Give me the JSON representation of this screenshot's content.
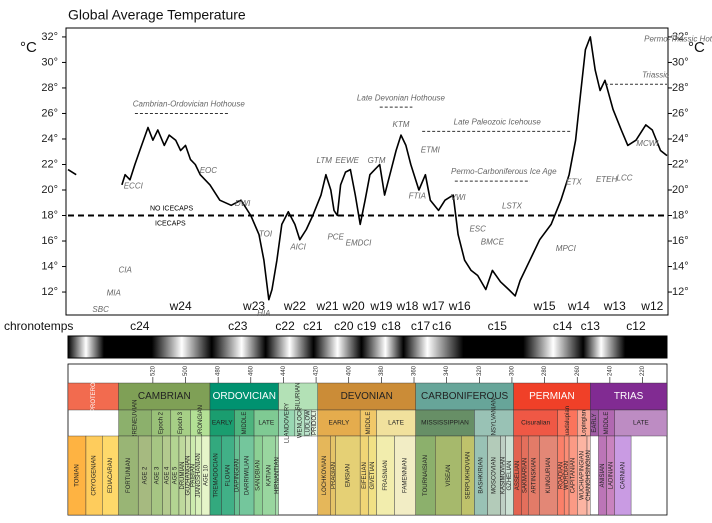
{
  "chart_data": {
    "type": "line",
    "title": "Global Average Temperature",
    "y_unit": "°C",
    "x": [
      572,
      567,
      555,
      539,
      537,
      534,
      531,
      528,
      523,
      520,
      517,
      513,
      510,
      506,
      503,
      500,
      497,
      494,
      491,
      485,
      479,
      472,
      466,
      460,
      455,
      452,
      449,
      447,
      444,
      441,
      437,
      433,
      430,
      426,
      422,
      417,
      414,
      411,
      409,
      407,
      405,
      402,
      399,
      396,
      393,
      390,
      387,
      384,
      381,
      378,
      374,
      371,
      368,
      365,
      362,
      357,
      353,
      350,
      345,
      341,
      336,
      333,
      329,
      325,
      321,
      316,
      312,
      307,
      302,
      298,
      295,
      289,
      283,
      276,
      270,
      265,
      261,
      258,
      255,
      252,
      249,
      246,
      243,
      238,
      233,
      229,
      224,
      218,
      214,
      209,
      205
    ],
    "values": [
      21.6,
      21.2,
      null,
      20.4,
      21.2,
      20.8,
      22.0,
      23.1,
      24.9,
      23.9,
      24.7,
      23.5,
      24.3,
      23.9,
      23.1,
      23.5,
      22.4,
      22.0,
      21.2,
      20.4,
      19.2,
      18.8,
      19.2,
      18.0,
      16.5,
      14.5,
      11.4,
      12.2,
      14.5,
      17.3,
      18.3,
      17.3,
      16.1,
      16.9,
      18.0,
      19.6,
      21.2,
      20.0,
      18.4,
      18.0,
      20.4,
      21.4,
      21.6,
      19.6,
      17.3,
      19.2,
      21.2,
      21.6,
      22.0,
      19.6,
      21.6,
      23.1,
      24.3,
      23.5,
      22.0,
      20.0,
      21.2,
      19.2,
      18.4,
      19.2,
      19.6,
      16.5,
      14.5,
      13.7,
      13.3,
      12.2,
      13.7,
      12.8,
      12.2,
      11.7,
      12.9,
      14.5,
      16.1,
      17.3,
      19.2,
      21.2,
      23.9,
      27.5,
      31.0,
      32.0,
      29.4,
      27.8,
      28.6,
      26.3,
      24.7,
      23.5,
      23.9,
      25.1,
      24.7,
      23.1,
      22.7
    ],
    "color": "#000000",
    "xlim": [
      572,
      205
    ],
    "ylim": [
      10.2,
      32.7
    ],
    "yticks": [
      {
        "value": 12,
        "label": "12°"
      },
      {
        "value": 14,
        "label": "14°"
      },
      {
        "value": 16,
        "label": "16°"
      },
      {
        "value": 18,
        "label": "18°"
      },
      {
        "value": 20,
        "label": "20°"
      },
      {
        "value": 22,
        "label": "22°"
      },
      {
        "value": 24,
        "label": "24°"
      },
      {
        "value": 26,
        "label": "26°"
      },
      {
        "value": 28,
        "label": "28°"
      },
      {
        "value": 30,
        "label": "30°"
      },
      {
        "value": 32,
        "label": "32°"
      }
    ],
    "threshold": {
      "value": 18,
      "above": "NO ICECAPS",
      "below": "ICECAPS"
    },
    "annotations": [
      {
        "text": "Cambrian-Ordovician Hothouse",
        "x": 498,
        "y": 26.7,
        "span": [
          531,
          474
        ]
      },
      {
        "text": "Late Devonian Hothouse",
        "x": 368,
        "y": 27.2,
        "span": [
          381,
          361
        ]
      },
      {
        "text": "Late Paleozoic Icehouse",
        "x": 309,
        "y": 25.3,
        "span": [
          355,
          264
        ]
      },
      {
        "text": "Permo-Carboniferous Ice Age",
        "x": 305,
        "y": 21.4,
        "span": [
          335,
          289
        ]
      },
      {
        "text": "Permo-Triassic Hothouse",
        "x": 219,
        "y": 31.8
      },
      {
        "text": "Triassic",
        "x": 212,
        "y": 29.0,
        "span": [
          243,
          205
        ]
      },
      {
        "text": "ECCI",
        "x": 532,
        "y": 20.3
      },
      {
        "text": "EOC",
        "x": 486,
        "y": 21.5
      },
      {
        "text": "DWI",
        "x": 465,
        "y": 18.9
      },
      {
        "text": "TOI",
        "x": 451,
        "y": 16.5
      },
      {
        "text": "AICI",
        "x": 431,
        "y": 15.5
      },
      {
        "text": "HIA",
        "x": 452,
        "y": 10.3
      },
      {
        "text": "LTM",
        "x": 415,
        "y": 22.3
      },
      {
        "text": "EEWE",
        "x": 401,
        "y": 22.3
      },
      {
        "text": "GTM",
        "x": 383,
        "y": 22.3
      },
      {
        "text": "KTM",
        "x": 368,
        "y": 25.1
      },
      {
        "text": "ETMI",
        "x": 350,
        "y": 23.1
      },
      {
        "text": "FTIA",
        "x": 358,
        "y": 19.5
      },
      {
        "text": "VWI",
        "x": 333,
        "y": 19.4
      },
      {
        "text": "PCE",
        "x": 408,
        "y": 16.3
      },
      {
        "text": "EMDCI",
        "x": 394,
        "y": 15.8
      },
      {
        "text": "ESC",
        "x": 321,
        "y": 16.9
      },
      {
        "text": "BMCE",
        "x": 312,
        "y": 15.9
      },
      {
        "text": "LSTX",
        "x": 300,
        "y": 18.7
      },
      {
        "text": "ETX",
        "x": 262,
        "y": 20.6
      },
      {
        "text": "ETEH",
        "x": 242,
        "y": 20.8
      },
      {
        "text": "MPCI",
        "x": 267,
        "y": 15.4
      },
      {
        "text": "LCC",
        "x": 231,
        "y": 20.9
      },
      {
        "text": "MCWI",
        "x": 217,
        "y": 23.6
      },
      {
        "text": "CIA",
        "x": 537,
        "y": 13.7
      },
      {
        "text": "MIA",
        "x": 544,
        "y": 11.9
      },
      {
        "text": "SBC",
        "x": 552,
        "y": 10.6
      }
    ],
    "warm_zones": {
      "labels": [
        "w24",
        "w23",
        "w22",
        "w21",
        "w20",
        "w19",
        "w18",
        "w17",
        "w16",
        "w15",
        "w14",
        "w13",
        "w12"
      ],
      "x": [
        503,
        458,
        433,
        413,
        397,
        380,
        364,
        348,
        332,
        280,
        259,
        237,
        214
      ]
    },
    "chronotemps": {
      "title": "chronotemps",
      "labels": [
        "c24",
        "c23",
        "c22",
        "c21",
        "c20",
        "c19",
        "c18",
        "c17",
        "c16",
        "c15",
        "c14",
        "c13",
        "c12"
      ],
      "x": [
        528,
        468,
        439,
        422,
        403,
        389,
        374,
        356,
        343,
        309,
        269,
        252,
        224
      ]
    },
    "timescale": {
      "ticks": [
        520,
        500,
        480,
        460,
        440,
        420,
        400,
        380,
        360,
        340,
        320,
        300,
        280,
        260,
        240,
        220
      ],
      "periods": [
        {
          "name": "NEOPROTEROZOIC",
          "start": 572,
          "end": 541,
          "color": "#f26b4f"
        },
        {
          "name": "CAMBRIAN",
          "start": 541,
          "end": 485,
          "color": "#7fa056"
        },
        {
          "name": "ORDOVICIAN",
          "start": 485,
          "end": 443,
          "color": "#009270"
        },
        {
          "name": "SILURIAN",
          "start": 443,
          "end": 419,
          "color": "#b3e1b6"
        },
        {
          "name": "DEVONIAN",
          "start": 419,
          "end": 359,
          "color": "#cb8c37"
        },
        {
          "name": "CARBONIFEROUS",
          "start": 359,
          "end": 299,
          "color": "#67a599"
        },
        {
          "name": "PERMIAN",
          "start": 299,
          "end": 252,
          "color": "#f04028"
        },
        {
          "name": "TRIAS",
          "start": 252,
          "end": 205,
          "color": "#812b92"
        }
      ],
      "epochs": [
        {
          "name": "TERRENEUVIAN",
          "start": 541,
          "end": 521,
          "color": "#8cb06c"
        },
        {
          "name": "Epoch 2",
          "start": 521,
          "end": 509,
          "color": "#99c078"
        },
        {
          "name": "Epoch 3",
          "start": 509,
          "end": 497,
          "color": "#a6cf86"
        },
        {
          "name": "FURONGIAN",
          "start": 497,
          "end": 485,
          "color": "#b3e095"
        },
        {
          "name": "EARLY",
          "start": 485,
          "end": 470,
          "color": "#1a9d6f"
        },
        {
          "name": "MIDDLE",
          "start": 470,
          "end": 458,
          "color": "#4db47e"
        },
        {
          "name": "LATE",
          "start": 458,
          "end": 443,
          "color": "#7fca93"
        },
        {
          "name": "LLANDOVERY",
          "start": 443,
          "end": 433,
          "color": "#99d7b3"
        },
        {
          "name": "WENLOCK",
          "start": 433,
          "end": 427,
          "color": "#b3e1c2"
        },
        {
          "name": "LUDLOW",
          "start": 427,
          "end": 423,
          "color": "#bfe6cf"
        },
        {
          "name": "PRIDOLI",
          "start": 423,
          "end": 419,
          "color": "#e6f5e1"
        },
        {
          "name": "EARLY",
          "start": 419,
          "end": 393,
          "color": "#e5ac4d"
        },
        {
          "name": "MIDDLE",
          "start": 393,
          "end": 383,
          "color": "#f1c868"
        },
        {
          "name": "LATE",
          "start": 383,
          "end": 359,
          "color": "#f1e19d"
        },
        {
          "name": "MISSISSIPPIAN",
          "start": 359,
          "end": 323,
          "color": "#678f66"
        },
        {
          "name": "PENNSYLVANIAN",
          "start": 323,
          "end": 299,
          "color": "#99c2b5"
        },
        {
          "name": "Cisuralian",
          "start": 299,
          "end": 272,
          "color": "#ef5845"
        },
        {
          "name": "Guadalupian",
          "start": 272,
          "end": 260,
          "color": "#fb745c"
        },
        {
          "name": "Lopingian",
          "start": 260,
          "end": 252,
          "color": "#fba794"
        },
        {
          "name": "EARLY",
          "start": 252,
          "end": 247,
          "color": "#a05da5"
        },
        {
          "name": "MIDDLE",
          "start": 247,
          "end": 237,
          "color": "#b168b1"
        },
        {
          "name": "LATE",
          "start": 237,
          "end": 205,
          "color": "#bd8cc3"
        }
      ],
      "stages": [
        {
          "name": "TONIAN",
          "start": 572,
          "end": 561,
          "color": "#feb342"
        },
        {
          "name": "CRYOGENIAN",
          "start": 561,
          "end": 551,
          "color": "#fecc5c"
        },
        {
          "name": "EDIACARAN",
          "start": 551,
          "end": 541,
          "color": "#fed96a"
        },
        {
          "name": "FORTUNIAN",
          "start": 541,
          "end": 529,
          "color": "#99b575"
        },
        {
          "name": "AGE 2",
          "start": 529,
          "end": 521,
          "color": "#a6ba80"
        },
        {
          "name": "AGE 3",
          "start": 521,
          "end": 514,
          "color": "#a6c583"
        },
        {
          "name": "AGE 4",
          "start": 514,
          "end": 509,
          "color": "#b3ca8e"
        },
        {
          "name": "AGE 5",
          "start": 509,
          "end": 504,
          "color": "#b3d492"
        },
        {
          "name": "DRUMIAN",
          "start": 504,
          "end": 500,
          "color": "#bfd99d"
        },
        {
          "name": "GUZHANGIAN",
          "start": 500,
          "end": 497,
          "color": "#ccdfaa"
        },
        {
          "name": "PAIBIAN",
          "start": 497,
          "end": 494,
          "color": "#ccebae"
        },
        {
          "name": "JIANGSHANIAN",
          "start": 494,
          "end": 490,
          "color": "#d9f0bb"
        },
        {
          "name": "AGE 10",
          "start": 490,
          "end": 485,
          "color": "#e6f5c9"
        },
        {
          "name": "TREMADOCIAN",
          "start": 485,
          "end": 478,
          "color": "#33a97e"
        },
        {
          "name": "FLOIAN",
          "start": 478,
          "end": 470,
          "color": "#41b087"
        },
        {
          "name": "DAPINGIAN",
          "start": 470,
          "end": 467,
          "color": "#66c092"
        },
        {
          "name": "DARRIWILIAN",
          "start": 467,
          "end": 458,
          "color": "#74c69c"
        },
        {
          "name": "SANDBIAN",
          "start": 458,
          "end": 453,
          "color": "#8cd094"
        },
        {
          "name": "KATIAN",
          "start": 453,
          "end": 445,
          "color": "#99d69f"
        },
        {
          "name": "HIRNANTIAN",
          "start": 445,
          "end": 443,
          "color": "#a6dbab"
        },
        {
          "name": "LOCHKOVIAN",
          "start": 419,
          "end": 411,
          "color": "#e5b75a"
        },
        {
          "name": "PRAGIAN",
          "start": 411,
          "end": 408,
          "color": "#e5c468"
        },
        {
          "name": "EMSIAN",
          "start": 408,
          "end": 393,
          "color": "#e5d075"
        },
        {
          "name": "EIFELIAN",
          "start": 393,
          "end": 388,
          "color": "#f1d576"
        },
        {
          "name": "GIVETIAN",
          "start": 388,
          "end": 383,
          "color": "#f1e185"
        },
        {
          "name": "FRASNIAN",
          "start": 383,
          "end": 372,
          "color": "#f2edad"
        },
        {
          "name": "FAMENNIAN",
          "start": 372,
          "end": 359,
          "color": "#f2edc5"
        },
        {
          "name": "TOURNAISIAN",
          "start": 359,
          "end": 347,
          "color": "#8cb06c"
        },
        {
          "name": "VISEAN",
          "start": 347,
          "end": 331,
          "color": "#a6b96c"
        },
        {
          "name": "SERPUKHOVIAN",
          "start": 331,
          "end": 323,
          "color": "#bfc26b"
        },
        {
          "name": "BASHKIRIAN",
          "start": 323,
          "end": 315,
          "color": "#99c2b5"
        },
        {
          "name": "MOSCOVIAN",
          "start": 315,
          "end": 307,
          "color": "#b3cbb9"
        },
        {
          "name": "KASIMOVIAN",
          "start": 307,
          "end": 304,
          "color": "#bfd0c5"
        },
        {
          "name": "GZHELIAN",
          "start": 304,
          "end": 299,
          "color": "#cce1d4"
        },
        {
          "name": "ASSELIAN",
          "start": 299,
          "end": 294,
          "color": "#e36350"
        },
        {
          "name": "SAKMARIAN",
          "start": 294,
          "end": 290,
          "color": "#e36f5c"
        },
        {
          "name": "ARTINSKIAN",
          "start": 290,
          "end": 283,
          "color": "#e37b68"
        },
        {
          "name": "KUNGURIAN",
          "start": 283,
          "end": 272,
          "color": "#e38776"
        },
        {
          "name": "ROADIAN",
          "start": 272,
          "end": 268,
          "color": "#fb8069"
        },
        {
          "name": "WORDIAN",
          "start": 268,
          "end": 265,
          "color": "#fb8d76"
        },
        {
          "name": "CAPITANIAN",
          "start": 265,
          "end": 260,
          "color": "#fb9a85"
        },
        {
          "name": "WUCHIAPINGIAN",
          "start": 260,
          "end": 254,
          "color": "#fcb4a2"
        },
        {
          "name": "CHANGHSINGIAN",
          "start": 254,
          "end": 252,
          "color": "#fcc0b2"
        },
        {
          "name": "ANISIAN",
          "start": 247,
          "end": 242,
          "color": "#bc75b7"
        },
        {
          "name": "LADINIAN",
          "start": 242,
          "end": 237,
          "color": "#c983bf"
        },
        {
          "name": "CARNIAN",
          "start": 237,
          "end": 227,
          "color": "#c99be3"
        }
      ]
    }
  }
}
